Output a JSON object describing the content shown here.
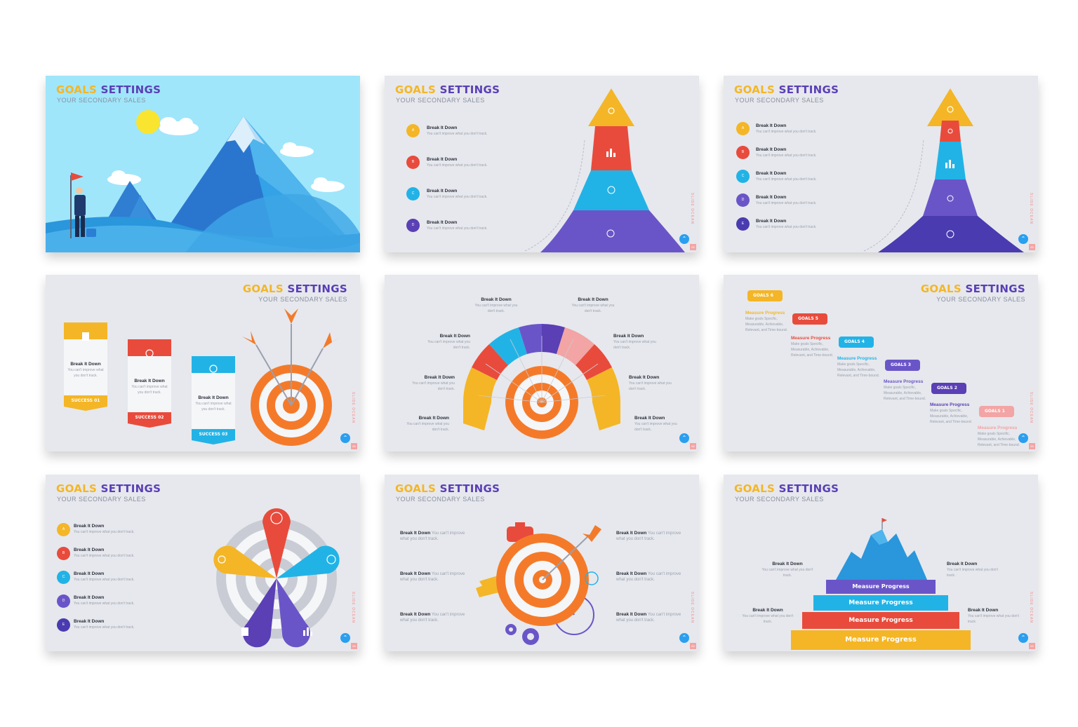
{
  "title": {
    "part1": "GOALS",
    "part2": "SETTINGS",
    "subtitle": "YOUR SECONDARY SALES"
  },
  "item": {
    "heading": "Break It Down",
    "desc": "You can't improve what you don't track.",
    "desc_split_a": "You can't improve what",
    "desc_split_b": "you don't track.",
    "inline_desc": "You can't improve what you don't track."
  },
  "letters": [
    "A",
    "B",
    "C",
    "D",
    "E"
  ],
  "success_labels": [
    "SUCCESS 01",
    "SUCCESS 02",
    "SUCCESS 03"
  ],
  "goals_labels": [
    "GOALS 6",
    "GOALS 5",
    "GOALS 4",
    "GOALS 3",
    "GOALS 2",
    "GOALS 1"
  ],
  "measure_heading": "Measure Progress",
  "measure_desc": "Make goals Specific, Measurable, Achievable, Relevant, and Time-bound.",
  "pyramid_labels": [
    "Measure Progress",
    "Measure Progress",
    "Measure Progress",
    "Measure Progress"
  ],
  "brand": "SLIDE OCEAN",
  "page_number": "00",
  "colors": {
    "yellow": "#f4b626",
    "purple": "#5a3fb5",
    "red": "#e84b3c",
    "cyan": "#22b3e6",
    "violet": "#6a55c8",
    "indigo": "#4a3bb0",
    "orange": "#f47a2a",
    "pink": "#f3a4a4",
    "grey_bg": "#e6e8ed",
    "sky": "#9fe6fb"
  },
  "icons": [
    "gear-icon",
    "bar-chart-icon",
    "target-icon",
    "lightbulb-icon",
    "document-icon",
    "cart-icon",
    "diamond-icon",
    "clock-icon",
    "check-icon",
    "brain-icon",
    "timer-icon",
    "flag-icon"
  ]
}
